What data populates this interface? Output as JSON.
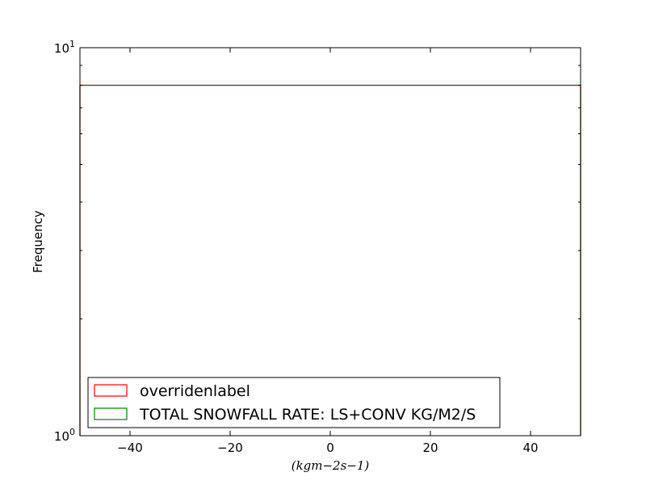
{
  "chart_data": {
    "type": "histogram",
    "title": "",
    "xlabel": "(kgm−2s−1)",
    "ylabel": "Frequency",
    "xlim": [
      -50,
      50
    ],
    "ylim": [
      1,
      10
    ],
    "yscale": "log",
    "x_ticks": [
      -40,
      -20,
      0,
      20,
      40
    ],
    "x_tick_labels": [
      "−40",
      "−20",
      "0",
      "20",
      "40"
    ],
    "y_ticks": [
      1,
      10
    ],
    "y_tick_labels": [
      {
        "base": "10",
        "exp": "0"
      },
      {
        "base": "10",
        "exp": "1"
      }
    ],
    "grid": false,
    "legend_position": "lower-left",
    "series": [
      {
        "name": "overridenlabel",
        "color": "#ff0000",
        "style": "step-outline",
        "x": [
          -50,
          50
        ],
        "y": [
          8,
          8
        ]
      },
      {
        "name": "TOTAL SNOWFALL RATE: LS+CONV KG/M2/S",
        "color": "#008000",
        "style": "step-outline",
        "x": [
          -50,
          50
        ],
        "y": [
          8,
          8
        ]
      }
    ]
  }
}
